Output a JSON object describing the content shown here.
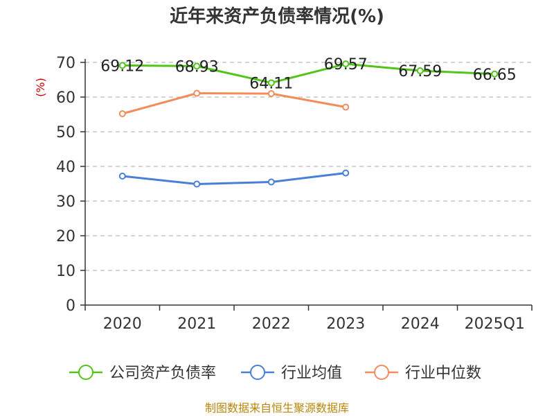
{
  "chart_data": {
    "type": "line",
    "title": "近年来资产负债率情况(%)",
    "xlabel": "",
    "ylabel": "(%)",
    "categories": [
      "2020",
      "2021",
      "2022",
      "2023",
      "2024",
      "2025Q1"
    ],
    "ylim": [
      0,
      70
    ],
    "yticks": [
      0,
      10,
      20,
      30,
      40,
      50,
      60,
      70
    ],
    "grid": true,
    "legend_position": "bottom",
    "series": [
      {
        "name": "公司资产负债率",
        "color": "#52c41a",
        "values": [
          69.12,
          68.93,
          64.11,
          69.57,
          67.59,
          66.65
        ],
        "labels": [
          "69.12",
          "68.93",
          "64.11",
          "69.57",
          "67.59",
          "66.65"
        ]
      },
      {
        "name": "行业均值",
        "color": "#4a7fd8",
        "values": [
          37.2,
          34.9,
          35.5,
          38.1,
          null,
          null
        ]
      },
      {
        "name": "行业中位数",
        "color": "#f28c5a",
        "values": [
          55.2,
          61.1,
          61.0,
          57.1,
          null,
          null
        ]
      }
    ]
  },
  "footer": {
    "source": "制图数据来自恒生聚源数据库"
  }
}
